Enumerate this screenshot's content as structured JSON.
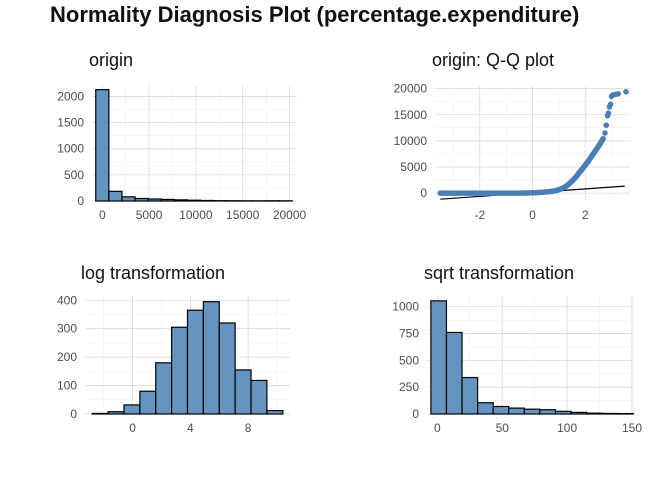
{
  "title": "Normality Diagnosis Plot (percentage.expenditure)",
  "colors": {
    "fill": "#6495c1",
    "point": "#4a7fb6",
    "grid": "#d9d9d9",
    "stroke": "#000000"
  },
  "chart_data": [
    {
      "id": "origin",
      "type": "bar",
      "title": "origin",
      "xlabel": "",
      "ylabel": "",
      "xlim": [
        -1100,
        20800
      ],
      "ylim": [
        0,
        2200
      ],
      "x_ticks": [
        0,
        5000,
        10000,
        15000,
        20000
      ],
      "y_ticks": [
        0,
        500,
        1000,
        1500,
        2000
      ],
      "grid": true,
      "bins": [
        {
          "x0": -700,
          "x1": 700,
          "count": 2130
        },
        {
          "x0": 700,
          "x1": 2100,
          "count": 185
        },
        {
          "x0": 2100,
          "x1": 3500,
          "count": 80
        },
        {
          "x0": 3500,
          "x1": 4900,
          "count": 48
        },
        {
          "x0": 4900,
          "x1": 6300,
          "count": 38
        },
        {
          "x0": 6300,
          "x1": 7700,
          "count": 30
        },
        {
          "x0": 7700,
          "x1": 9100,
          "count": 22
        },
        {
          "x0": 9100,
          "x1": 10500,
          "count": 15
        },
        {
          "x0": 10500,
          "x1": 11900,
          "count": 10
        },
        {
          "x0": 11900,
          "x1": 13300,
          "count": 6
        },
        {
          "x0": 13300,
          "x1": 14700,
          "count": 5
        },
        {
          "x0": 14700,
          "x1": 16100,
          "count": 4
        },
        {
          "x0": 16100,
          "x1": 17500,
          "count": 4
        },
        {
          "x0": 17500,
          "x1": 18900,
          "count": 5
        },
        {
          "x0": 18900,
          "x1": 20300,
          "count": 4
        }
      ]
    },
    {
      "id": "qq",
      "type": "scatter",
      "title": "origin: Q-Q plot",
      "xlabel": "",
      "ylabel": "",
      "xlim": [
        -3.7,
        3.7
      ],
      "ylim": [
        -1500,
        20500
      ],
      "x_ticks": [
        -2,
        0,
        2
      ],
      "y_ticks": [
        0,
        5000,
        10000,
        15000,
        20000
      ],
      "grid": true,
      "reference_line": {
        "x": [
          -3.5,
          3.5
        ],
        "y": [
          -1150,
          1350
        ]
      },
      "curve_points": [
        [
          -3.5,
          5
        ],
        [
          -2.8,
          5
        ],
        [
          -2.2,
          5
        ],
        [
          -1.6,
          5
        ],
        [
          -1.0,
          5
        ],
        [
          -0.5,
          8
        ],
        [
          0.0,
          60
        ],
        [
          0.4,
          180
        ],
        [
          0.7,
          320
        ],
        [
          0.9,
          500
        ],
        [
          1.05,
          750
        ],
        [
          1.2,
          1100
        ],
        [
          1.35,
          1600
        ],
        [
          1.5,
          2300
        ],
        [
          1.65,
          3100
        ],
        [
          1.8,
          4100
        ],
        [
          1.95,
          5000
        ],
        [
          2.1,
          6000
        ],
        [
          2.25,
          7100
        ],
        [
          2.4,
          8200
        ],
        [
          2.55,
          9300
        ],
        [
          2.7,
          10600
        ]
      ],
      "extra_points": [
        [
          2.75,
          11500
        ],
        [
          2.8,
          13000
        ],
        [
          2.85,
          14800
        ],
        [
          2.88,
          15300
        ],
        [
          2.92,
          16500
        ],
        [
          2.96,
          17000
        ],
        [
          3.0,
          18500
        ],
        [
          3.05,
          18800
        ],
        [
          3.15,
          18900
        ],
        [
          3.25,
          19000
        ],
        [
          3.55,
          19400
        ]
      ]
    },
    {
      "id": "log",
      "type": "bar",
      "title": "log transformation",
      "xlabel": "",
      "ylabel": "",
      "xlim": [
        -3.3,
        10.9
      ],
      "ylim": [
        0,
        415
      ],
      "x_ticks": [
        0,
        4,
        8
      ],
      "y_ticks": [
        0,
        100,
        200,
        300,
        400
      ],
      "grid": true,
      "bins": [
        {
          "x0": -2.8,
          "x1": -1.7,
          "count": 2
        },
        {
          "x0": -1.7,
          "x1": -0.6,
          "count": 8
        },
        {
          "x0": -0.6,
          "x1": 0.5,
          "count": 32
        },
        {
          "x0": 0.5,
          "x1": 1.6,
          "count": 80
        },
        {
          "x0": 1.6,
          "x1": 2.7,
          "count": 180
        },
        {
          "x0": 2.7,
          "x1": 3.8,
          "count": 305
        },
        {
          "x0": 3.8,
          "x1": 4.9,
          "count": 365
        },
        {
          "x0": 4.9,
          "x1": 6.0,
          "count": 395
        },
        {
          "x0": 6.0,
          "x1": 7.1,
          "count": 320
        },
        {
          "x0": 7.1,
          "x1": 8.2,
          "count": 155
        },
        {
          "x0": 8.2,
          "x1": 9.3,
          "count": 118
        },
        {
          "x0": 9.3,
          "x1": 10.4,
          "count": 12
        }
      ]
    },
    {
      "id": "sqrt",
      "type": "bar",
      "title": "sqrt transformation",
      "xlabel": "",
      "ylabel": "",
      "xlim": [
        -8,
        150
      ],
      "ylim": [
        0,
        1100
      ],
      "x_ticks": [
        0,
        50,
        100,
        150
      ],
      "y_ticks": [
        0,
        250,
        500,
        750,
        1000
      ],
      "grid": true,
      "bins": [
        {
          "x0": -5,
          "x1": 7,
          "count": 1055
        },
        {
          "x0": 7,
          "x1": 19,
          "count": 760
        },
        {
          "x0": 19,
          "x1": 31,
          "count": 340
        },
        {
          "x0": 31,
          "x1": 43,
          "count": 105
        },
        {
          "x0": 43,
          "x1": 55,
          "count": 70
        },
        {
          "x0": 55,
          "x1": 67,
          "count": 55
        },
        {
          "x0": 67,
          "x1": 79,
          "count": 45
        },
        {
          "x0": 79,
          "x1": 91,
          "count": 40
        },
        {
          "x0": 91,
          "x1": 103,
          "count": 25
        },
        {
          "x0": 103,
          "x1": 115,
          "count": 15
        },
        {
          "x0": 115,
          "x1": 127,
          "count": 8
        },
        {
          "x0": 127,
          "x1": 139,
          "count": 5
        },
        {
          "x0": 139,
          "x1": 151,
          "count": 4
        }
      ]
    }
  ]
}
